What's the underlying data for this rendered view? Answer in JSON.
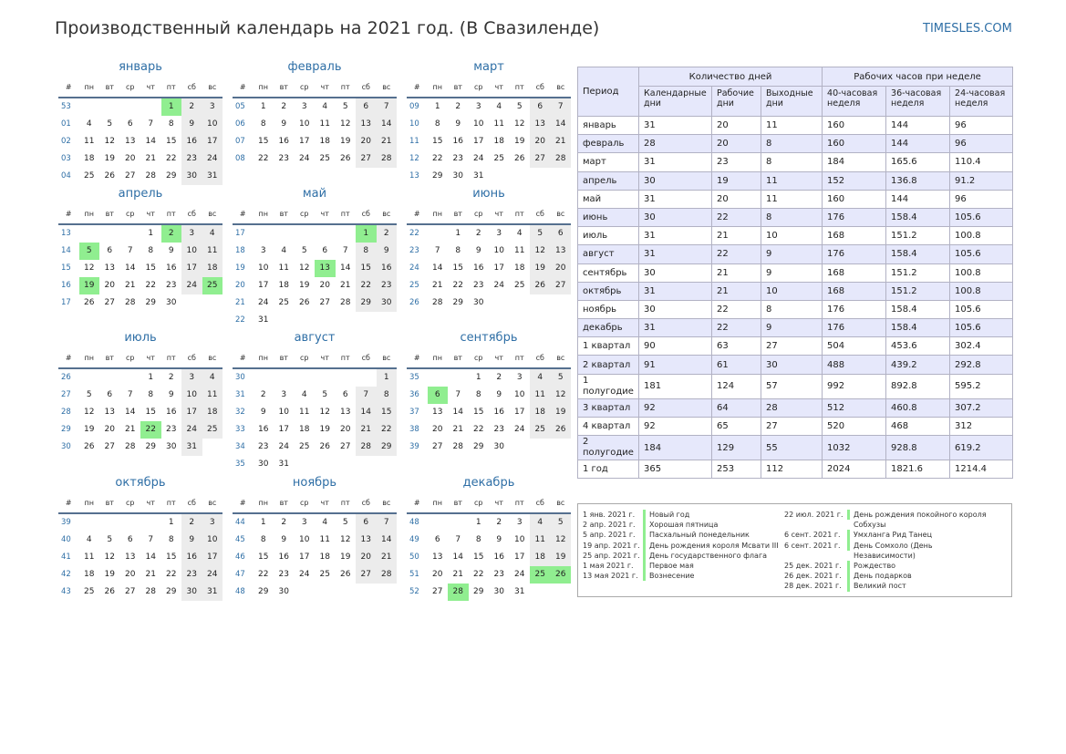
{
  "header": {
    "title": "Производственный календарь на 2021 год. (В Свазиленде)",
    "site": "TIMESLES.COM"
  },
  "calendar": {
    "weekday_headers": [
      "#",
      "пн",
      "вт",
      "ср",
      "чт",
      "пт",
      "сб",
      "вс"
    ],
    "months": [
      {
        "name": "январь",
        "start": 4,
        "days": 31,
        "weeks": [
          "53",
          "01",
          "02",
          "03",
          "04"
        ],
        "holidays": [
          1
        ]
      },
      {
        "name": "февраль",
        "start": 0,
        "days": 28,
        "weeks": [
          "05",
          "06",
          "07",
          "08"
        ],
        "holidays": []
      },
      {
        "name": "март",
        "start": 0,
        "days": 31,
        "weeks": [
          "09",
          "10",
          "11",
          "12",
          "13"
        ],
        "holidays": []
      },
      {
        "name": "апрель",
        "start": 3,
        "days": 30,
        "weeks": [
          "13",
          "14",
          "15",
          "16",
          "17"
        ],
        "holidays": [
          2,
          5,
          19,
          25
        ]
      },
      {
        "name": "май",
        "start": 5,
        "days": 31,
        "weeks": [
          "17",
          "18",
          "19",
          "20",
          "21",
          "22"
        ],
        "holidays": [
          1,
          13
        ]
      },
      {
        "name": "июнь",
        "start": 1,
        "days": 30,
        "weeks": [
          "22",
          "23",
          "24",
          "25",
          "26"
        ],
        "holidays": []
      },
      {
        "name": "июль",
        "start": 3,
        "days": 31,
        "weeks": [
          "26",
          "27",
          "28",
          "29",
          "30"
        ],
        "holidays": [
          22
        ]
      },
      {
        "name": "август",
        "start": 6,
        "days": 31,
        "weeks": [
          "30",
          "31",
          "32",
          "33",
          "34",
          "35"
        ],
        "holidays": []
      },
      {
        "name": "сентябрь",
        "start": 2,
        "days": 30,
        "weeks": [
          "35",
          "36",
          "37",
          "38",
          "39"
        ],
        "holidays": [
          6
        ]
      },
      {
        "name": "октябрь",
        "start": 4,
        "days": 31,
        "weeks": [
          "39",
          "40",
          "41",
          "42",
          "43"
        ],
        "holidays": []
      },
      {
        "name": "ноябрь",
        "start": 0,
        "days": 30,
        "weeks": [
          "44",
          "45",
          "46",
          "47",
          "48"
        ],
        "holidays": []
      },
      {
        "name": "декабрь",
        "start": 2,
        "days": 31,
        "weeks": [
          "48",
          "49",
          "50",
          "51",
          "52"
        ],
        "holidays": [
          25,
          26,
          28
        ]
      }
    ]
  },
  "summary": {
    "group_headers": {
      "days": "Количество дней",
      "hours": "Рабочих часов при неделе"
    },
    "period_label": "Период",
    "sub_headers": [
      "Календарные дни",
      "Рабочие дни",
      "Выходные дни",
      "40-часовая неделя",
      "36-часовая неделя",
      "24-часовая неделя"
    ],
    "rows": [
      [
        "январь",
        "31",
        "20",
        "11",
        "160",
        "144",
        "96"
      ],
      [
        "февраль",
        "28",
        "20",
        "8",
        "160",
        "144",
        "96"
      ],
      [
        "март",
        "31",
        "23",
        "8",
        "184",
        "165.6",
        "110.4"
      ],
      [
        "апрель",
        "30",
        "19",
        "11",
        "152",
        "136.8",
        "91.2"
      ],
      [
        "май",
        "31",
        "20",
        "11",
        "160",
        "144",
        "96"
      ],
      [
        "июнь",
        "30",
        "22",
        "8",
        "176",
        "158.4",
        "105.6"
      ],
      [
        "июль",
        "31",
        "21",
        "10",
        "168",
        "151.2",
        "100.8"
      ],
      [
        "август",
        "31",
        "22",
        "9",
        "176",
        "158.4",
        "105.6"
      ],
      [
        "сентябрь",
        "30",
        "21",
        "9",
        "168",
        "151.2",
        "100.8"
      ],
      [
        "октябрь",
        "31",
        "21",
        "10",
        "168",
        "151.2",
        "100.8"
      ],
      [
        "ноябрь",
        "30",
        "22",
        "8",
        "176",
        "158.4",
        "105.6"
      ],
      [
        "декабрь",
        "31",
        "22",
        "9",
        "176",
        "158.4",
        "105.6"
      ],
      [
        "1 квартал",
        "90",
        "63",
        "27",
        "504",
        "453.6",
        "302.4"
      ],
      [
        "2 квартал",
        "91",
        "61",
        "30",
        "488",
        "439.2",
        "292.8"
      ],
      [
        "1 полугодие",
        "181",
        "124",
        "57",
        "992",
        "892.8",
        "595.2"
      ],
      [
        "3 квартал",
        "92",
        "64",
        "28",
        "512",
        "460.8",
        "307.2"
      ],
      [
        "4 квартал",
        "92",
        "65",
        "27",
        "520",
        "468",
        "312"
      ],
      [
        "2 полугодие",
        "184",
        "129",
        "55",
        "1032",
        "928.8",
        "619.2"
      ],
      [
        "1 год",
        "365",
        "253",
        "112",
        "2024",
        "1821.6",
        "1214.4"
      ]
    ]
  },
  "holidays_list": {
    "left": [
      {
        "date": "1 янв. 2021 г.",
        "name": "Новый год"
      },
      {
        "date": "2 апр. 2021 г.",
        "name": "Хорошая пятница"
      },
      {
        "date": "5 апр. 2021 г.",
        "name": "Пасхальный понедельник"
      },
      {
        "date": "19 апр. 2021 г.",
        "name": "День рождения короля Мсвати III"
      },
      {
        "date": "25 апр. 2021 г.",
        "name": "День государственного флага"
      },
      {
        "date": "1 мая 2021 г.",
        "name": "Первое мая"
      },
      {
        "date": "13 мая 2021 г.",
        "name": "Вознесение"
      }
    ],
    "right": [
      {
        "date": "22 июл. 2021 г.",
        "name": "День рождения покойного короля",
        "cont": "Собхузы"
      },
      {
        "date": "6 сент. 2021 г.",
        "name": "Умхланга Рид Танец"
      },
      {
        "date": "6 сент. 2021 г.",
        "name": "День Сомхоло (День",
        "cont": "Независимости)"
      },
      {
        "date": "25 дек. 2021 г.",
        "name": "Рождество"
      },
      {
        "date": "26 дек. 2021 г.",
        "name": "День подарков"
      },
      {
        "date": "28 дек. 2021 г.",
        "name": "Великий пост"
      }
    ]
  }
}
